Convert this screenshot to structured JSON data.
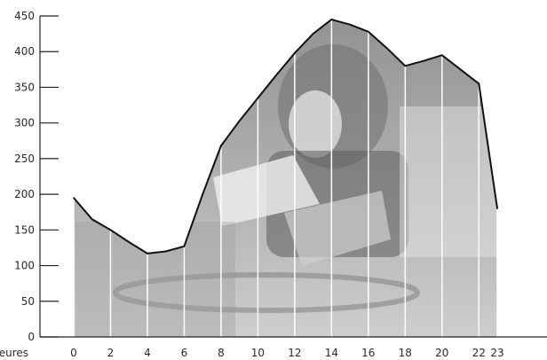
{
  "chart_data": {
    "type": "area",
    "x": [
      0,
      1,
      2,
      3,
      4,
      5,
      6,
      7,
      8,
      9,
      10,
      11,
      12,
      13,
      14,
      15,
      16,
      17,
      18,
      19,
      20,
      21,
      22,
      23
    ],
    "y": [
      195,
      165,
      150,
      133,
      117,
      120,
      127,
      200,
      268,
      303,
      335,
      367,
      398,
      425,
      445,
      438,
      428,
      405,
      380,
      387,
      395,
      375,
      355,
      180
    ],
    "xticks": [
      "0",
      "2",
      "4",
      "6",
      "8",
      "10",
      "12",
      "14",
      "16",
      "18",
      "20",
      "22",
      "23"
    ],
    "yticks": [
      "0",
      "50",
      "100",
      "150",
      "200",
      "250",
      "300",
      "350",
      "400",
      "450"
    ],
    "xlabel": "heures",
    "ylim": [
      0,
      450
    ],
    "xlim": [
      0,
      23
    ],
    "grid": false,
    "background_image": "photo of a truck driver at the wheel",
    "colors": {
      "fill": "#a9a9a9",
      "line": "#111111",
      "vlines": "#ffffff",
      "axis": "#222222"
    }
  }
}
